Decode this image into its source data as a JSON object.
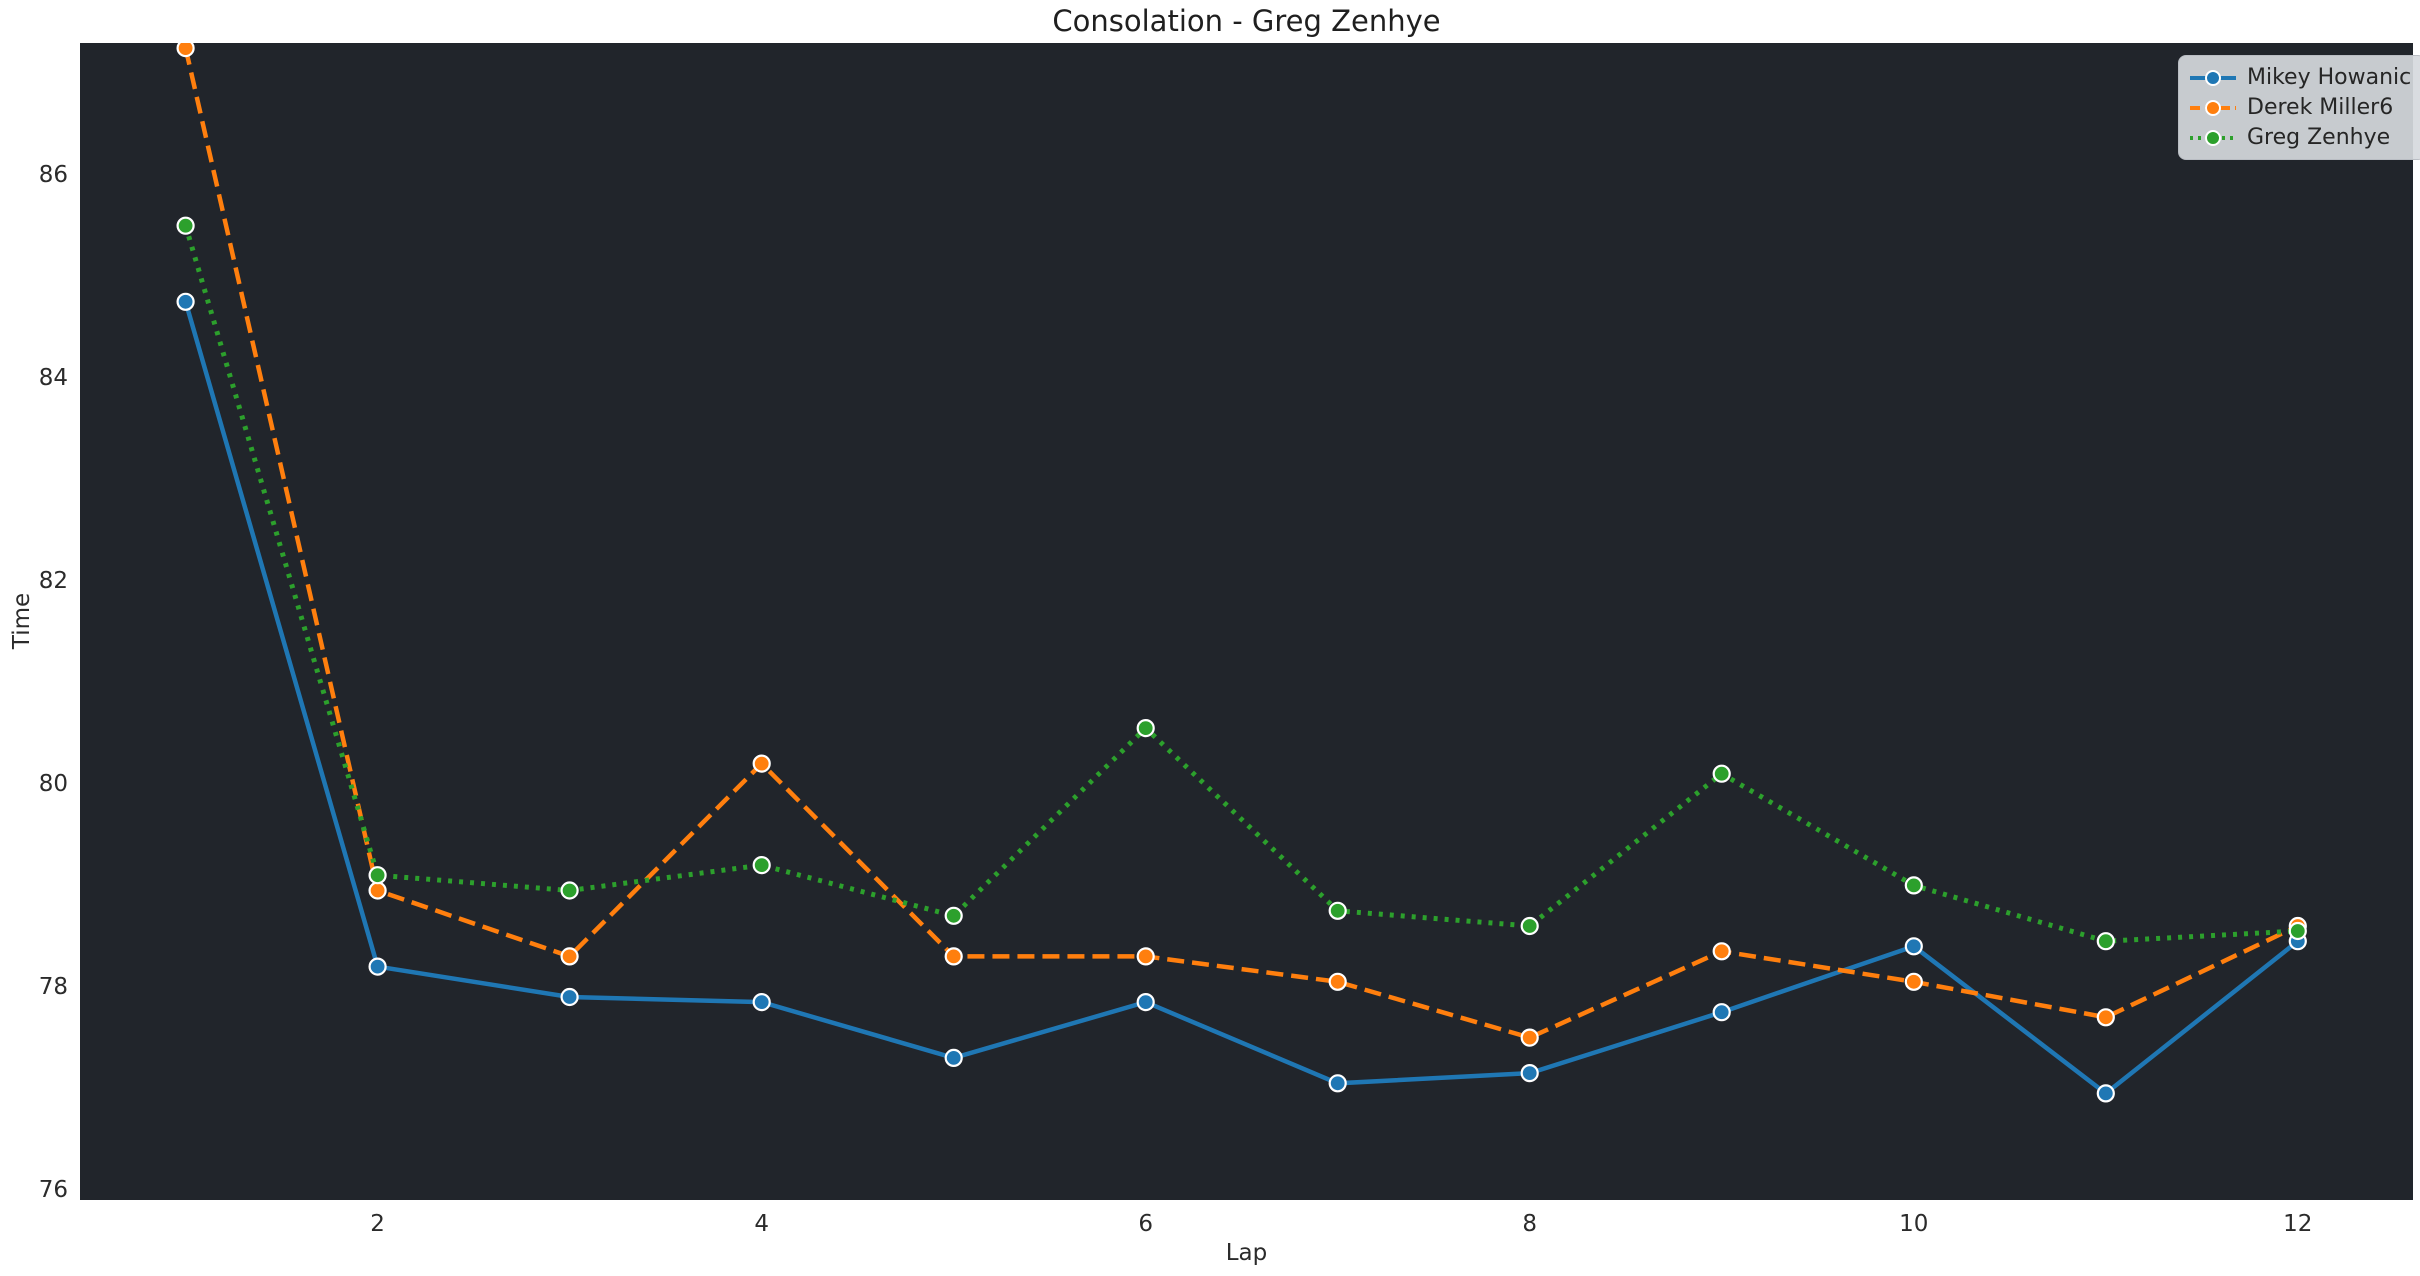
{
  "title": "Consolation - Greg Zenhye",
  "colors": {
    "figure_bg": "#ffffff",
    "axes_bg": "#21252b",
    "text": "#2b2b2b",
    "title_text": "#1f1f1f",
    "legend_bg": "#d6d9dd",
    "legend_border": "#b9bdc3",
    "marker_edge": "#ffffff"
  },
  "chart_data": {
    "type": "line",
    "title": "Consolation - Greg Zenhye",
    "xlabel": "Lap",
    "ylabel": "Time",
    "x": [
      1,
      2,
      3,
      4,
      5,
      6,
      7,
      8,
      9,
      10,
      11,
      12
    ],
    "series": [
      {
        "name": "Mikey Howanic",
        "color": "#1f77b4",
        "line_style": "solid",
        "marker": "circle",
        "values": [
          84.75,
          78.2,
          77.9,
          77.85,
          77.3,
          77.85,
          77.05,
          77.15,
          77.75,
          78.4,
          76.95,
          78.45
        ]
      },
      {
        "name": "Derek Miller6",
        "color": "#ff7f0e",
        "line_style": "dashed",
        "marker": "circle",
        "values": [
          87.25,
          78.95,
          78.3,
          80.2,
          78.3,
          78.3,
          78.05,
          77.5,
          78.35,
          78.05,
          77.7,
          78.6
        ]
      },
      {
        "name": "Greg Zenhye",
        "color": "#2ca02c",
        "line_style": "dotted",
        "marker": "circle",
        "values": [
          85.5,
          79.1,
          78.95,
          79.2,
          78.7,
          80.55,
          78.75,
          78.6,
          80.1,
          79.0,
          78.45,
          78.55
        ]
      }
    ],
    "xticks": [
      2,
      4,
      6,
      8,
      10,
      12
    ],
    "yticks": [
      76,
      78,
      80,
      82,
      84,
      86
    ],
    "xlim": [
      0.45,
      12.6
    ],
    "ylim": [
      75.9,
      87.3
    ],
    "grid": false,
    "legend_position": "upper right"
  }
}
